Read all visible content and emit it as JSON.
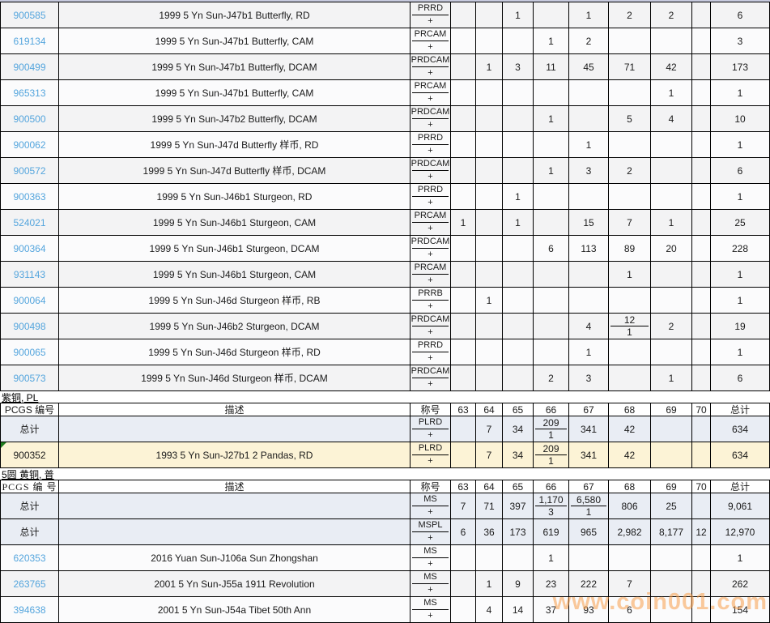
{
  "watermark": "www.coin001.com",
  "grade_columns": [
    "63",
    "64",
    "65",
    "66",
    "67",
    "68",
    "69",
    "70",
    "总计"
  ],
  "sections": [
    {
      "rows": [
        {
          "pcgs": "900585",
          "link": true,
          "desc": "1999 5 Yn Sun-J47b1 Butterfly, RD",
          "designation": "PRRD",
          "plus": "+",
          "grades": [
            "",
            "",
            "1",
            "",
            "1",
            "2",
            "2",
            ""
          ],
          "total": "6",
          "bg": "gray"
        },
        {
          "pcgs": "619134",
          "link": true,
          "desc": "1999 5 Yn Sun-J47b1 Butterfly, CAM",
          "designation": "PRCAM",
          "plus": "+",
          "grades": [
            "",
            "",
            "",
            "1",
            "2",
            "",
            "",
            ""
          ],
          "total": "3",
          "bg": "white"
        },
        {
          "pcgs": "900499",
          "link": true,
          "desc": "1999 5 Yn Sun-J47b1 Butterfly, DCAM",
          "designation": "PRDCAM",
          "plus": "+",
          "grades": [
            "",
            "1",
            "3",
            "11",
            "45",
            "71",
            "42",
            ""
          ],
          "total": "173",
          "bg": "gray"
        },
        {
          "pcgs": "965313",
          "link": true,
          "desc": "1999 5 Yn Sun-J47b1 Butterfly, CAM",
          "designation": "PRCAM",
          "plus": "+",
          "grades": [
            "",
            "",
            "",
            "",
            "",
            "",
            "1",
            ""
          ],
          "total": "1",
          "bg": "white"
        },
        {
          "pcgs": "900500",
          "link": true,
          "desc": "1999 5 Yn Sun-J47b2 Butterfly, DCAM",
          "designation": "PRDCAM",
          "plus": "+",
          "grades": [
            "",
            "",
            "",
            "1",
            "",
            "5",
            "4",
            ""
          ],
          "total": "10",
          "bg": "gray"
        },
        {
          "pcgs": "900062",
          "link": true,
          "desc": "1999 5 Yn Sun-J47d Butterfly 样币, RD",
          "designation": "PRRD",
          "plus": "+",
          "grades": [
            "",
            "",
            "",
            "",
            "1",
            "",
            "",
            ""
          ],
          "total": "1",
          "bg": "white"
        },
        {
          "pcgs": "900572",
          "link": true,
          "desc": "1999 5 Yn Sun-J47d Butterfly 样币, DCAM",
          "designation": "PRDCAM",
          "plus": "+",
          "grades": [
            "",
            "",
            "",
            "1",
            "3",
            "2",
            "",
            ""
          ],
          "total": "6",
          "bg": "gray"
        },
        {
          "pcgs": "900363",
          "link": true,
          "desc": "1999 5 Yn Sun-J46b1 Sturgeon, RD",
          "designation": "PRRD",
          "plus": "+",
          "grades": [
            "",
            "",
            "1",
            "",
            "",
            "",
            "",
            ""
          ],
          "total": "1",
          "bg": "white"
        },
        {
          "pcgs": "524021",
          "link": true,
          "desc": "1999 5 Yn Sun-J46b1 Sturgeon, CAM",
          "designation": "PRCAM",
          "plus": "+",
          "grades": [
            "1",
            "",
            "1",
            "",
            "15",
            "7",
            "1",
            ""
          ],
          "total": "25",
          "bg": "gray"
        },
        {
          "pcgs": "900364",
          "link": true,
          "desc": "1999 5 Yn Sun-J46b1 Sturgeon, DCAM",
          "designation": "PRDCAM",
          "plus": "+",
          "grades": [
            "",
            "",
            "",
            "6",
            "113",
            "89",
            "20",
            ""
          ],
          "total": "228",
          "bg": "white"
        },
        {
          "pcgs": "931143",
          "link": true,
          "desc": "1999 5 Yn Sun-J46b1 Sturgeon, CAM",
          "designation": "PRCAM",
          "plus": "+",
          "grades": [
            "",
            "",
            "",
            "",
            "",
            "1",
            "",
            ""
          ],
          "total": "1",
          "bg": "gray"
        },
        {
          "pcgs": "900064",
          "link": true,
          "desc": "1999 5 Yn Sun-J46d Sturgeon 样币, RB",
          "designation": "PRRB",
          "plus": "+",
          "grades": [
            "",
            "1",
            "",
            "",
            "",
            "",
            "",
            ""
          ],
          "total": "1",
          "bg": "white"
        },
        {
          "pcgs": "900498",
          "link": true,
          "desc": "1999 5 Yn Sun-J46b2 Sturgeon, DCAM",
          "designation": "PRDCAM",
          "plus": "+",
          "grades": [
            "",
            "",
            "",
            "",
            "4",
            [
              "12",
              "1"
            ],
            "2",
            ""
          ],
          "total": "19",
          "bg": "gray"
        },
        {
          "pcgs": "900065",
          "link": true,
          "desc": "1999 5 Yn Sun-J46d Sturgeon 样币, RD",
          "designation": "PRRD",
          "plus": "+",
          "grades": [
            "",
            "",
            "",
            "",
            "1",
            "",
            "",
            ""
          ],
          "total": "1",
          "bg": "white"
        },
        {
          "pcgs": "900573",
          "link": true,
          "desc": "1999 5 Yn Sun-J46d Sturgeon 样币, DCAM",
          "designation": "PRDCAM",
          "plus": "+",
          "grades": [
            "",
            "",
            "",
            "2",
            "3",
            "",
            "1",
            ""
          ],
          "total": "6",
          "bg": "gray"
        }
      ]
    },
    {
      "label": "紫铜, PL",
      "header": {
        "pcgs": "PCGS 编号",
        "desc": "描述",
        "designation": "称号"
      },
      "rows": [
        {
          "pcgs": "总计",
          "link": false,
          "desc": "",
          "designation": "PLRD",
          "plus": "+",
          "grades": [
            "",
            "7",
            "34",
            [
              "209",
              "1"
            ],
            "341",
            "42",
            "",
            ""
          ],
          "total": "634",
          "bg": "blue"
        },
        {
          "pcgs": "900352",
          "link": false,
          "marker": true,
          "desc": "1993 5 Yn Sun-J27b1 2 Pandas, RD",
          "designation": "PLRD",
          "plus": "+",
          "grades": [
            "",
            "7",
            "34",
            [
              "209",
              "1"
            ],
            "341",
            "42",
            "",
            ""
          ],
          "total": "634",
          "bg": "cream"
        }
      ]
    },
    {
      "label": "5圆 黄铜, 普",
      "header": {
        "pcgs": "PCGS 编 号",
        "desc": "描述",
        "designation": "称号"
      },
      "rows": [
        {
          "pcgs": "总计",
          "link": false,
          "desc": "",
          "designation": "MS",
          "plus": "+",
          "grades": [
            "7",
            "71",
            "397",
            [
              "1,170",
              "3"
            ],
            [
              "6,580",
              "1"
            ],
            "806",
            "25",
            ""
          ],
          "total": "9,061",
          "bg": "blue"
        },
        {
          "pcgs": "总计",
          "link": false,
          "desc": "",
          "designation": "MSPL",
          "plus": "+",
          "grades": [
            "6",
            "36",
            "173",
            "619",
            "965",
            "2,982",
            "8,177",
            "12"
          ],
          "total": "12,970",
          "bg": "blue"
        },
        {
          "pcgs": "620353",
          "link": true,
          "desc": "2016 Yuan Sun-J106a Sun Zhongshan",
          "designation": "MS",
          "plus": "+",
          "grades": [
            "",
            "",
            "",
            "1",
            "",
            "",
            "",
            ""
          ],
          "total": "1",
          "bg": "white"
        },
        {
          "pcgs": "263765",
          "link": true,
          "desc": "2001 5 Yn Sun-J55a 1911 Revolution",
          "designation": "MS",
          "plus": "+",
          "grades": [
            "",
            "1",
            "9",
            "23",
            "222",
            "7",
            "",
            ""
          ],
          "total": "262",
          "bg": "gray"
        },
        {
          "pcgs": "394638",
          "link": true,
          "desc": "2001 5 Yn Sun-J54a Tibet 50th Ann",
          "designation": "MS",
          "plus": "+",
          "grades": [
            "",
            "4",
            "14",
            "37",
            "93",
            "6",
            "",
            ""
          ],
          "total": "154",
          "bg": "white"
        }
      ]
    }
  ]
}
